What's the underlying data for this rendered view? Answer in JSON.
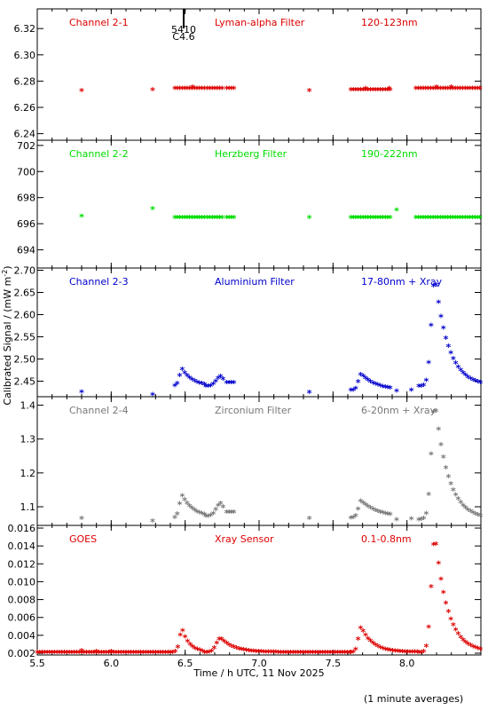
{
  "footer": "(1 minute averages)",
  "chart_data": {
    "type": "scatter",
    "xlabel": "Time / h UTC, 11 Nov 2025",
    "ylabel": "Calibrated Signal / (mW m",
    "ylabel_sup": "-2",
    "ylabel_close": ")",
    "xlim": [
      5.5,
      8.5
    ],
    "x_ticks": [
      5.5,
      6.0,
      6.5,
      7.0,
      7.5,
      8.0
    ],
    "x_tick_labels": [
      "5.5",
      "6.0",
      "6.5",
      "7.0",
      "7.5",
      "8.0"
    ],
    "flare_marker": {
      "x": 6.49,
      "label_top": "5410",
      "label_bottom": "C4.6"
    },
    "panels": [
      {
        "labels": [
          "Channel 2-1",
          "Lyman-alpha Filter",
          "120-123nm"
        ],
        "color": "#dd0000",
        "ylim": [
          6.235,
          6.335
        ],
        "yticks": [
          6.24,
          6.26,
          6.28,
          6.3,
          6.32
        ],
        "ytick_labels": [
          "6.24",
          "6.26",
          "6.28",
          "6.30",
          "6.32"
        ],
        "segments": [
          {
            "x0": 6.43,
            "x1": 6.63,
            "fn": "flat",
            "v": 6.274
          },
          {
            "x0": 6.65,
            "x1": 6.76,
            "fn": "flat",
            "v": 6.274
          },
          {
            "x0": 6.78,
            "x1": 6.83,
            "fn": "flat",
            "v": 6.274
          },
          {
            "x0": 7.62,
            "x1": 7.9,
            "fn": "flat",
            "v": 6.273
          },
          {
            "x0": 8.06,
            "x1": 8.5,
            "fn": "flat",
            "v": 6.274
          }
        ],
        "points": [
          [
            5.8,
            6.272
          ],
          [
            6.28,
            6.273
          ],
          [
            6.55,
            6.275
          ],
          [
            7.34,
            6.272
          ],
          [
            7.72,
            6.274
          ],
          [
            7.88,
            6.274
          ],
          [
            8.2,
            6.275
          ],
          [
            8.3,
            6.275
          ]
        ]
      },
      {
        "labels": [
          "Channel 2-2",
          "Herzberg Filter",
          "190-222nm"
        ],
        "color": "#00dd00",
        "ylim": [
          692.6,
          702.4
        ],
        "yticks": [
          694,
          696,
          698,
          700,
          702
        ],
        "ytick_labels": [
          "694",
          "696",
          "698",
          "700",
          "702"
        ],
        "segments": [
          {
            "x0": 6.43,
            "x1": 6.63,
            "fn": "flat",
            "v": 696.4
          },
          {
            "x0": 6.65,
            "x1": 6.76,
            "fn": "flat",
            "v": 696.4
          },
          {
            "x0": 6.78,
            "x1": 6.83,
            "fn": "flat",
            "v": 696.4
          },
          {
            "x0": 7.62,
            "x1": 7.9,
            "fn": "flat",
            "v": 696.4
          },
          {
            "x0": 8.06,
            "x1": 8.5,
            "fn": "flat",
            "v": 696.4
          }
        ],
        "points": [
          [
            5.8,
            696.5
          ],
          [
            6.28,
            697.1
          ],
          [
            7.34,
            696.4
          ],
          [
            7.93,
            697.0
          ]
        ]
      },
      {
        "labels": [
          "Channel 2-3",
          "Aluminium Filter",
          "17-80nm + Xray"
        ],
        "color": "#0000cc",
        "ylim": [
          2.415,
          2.705
        ],
        "yticks": [
          2.45,
          2.5,
          2.55,
          2.6,
          2.65,
          2.7
        ],
        "ytick_labels": [
          "2.45",
          "2.50",
          "2.55",
          "2.60",
          "2.65",
          "2.70"
        ],
        "segments": [
          {
            "x0": 6.43,
            "x1": 6.63,
            "fn": "bump",
            "base": 2.437,
            "amp": 0.038,
            "peak": 6.48,
            "rise": 0.025,
            "decay": 0.07
          },
          {
            "x0": 6.64,
            "x1": 6.77,
            "fn": "bump",
            "base": 2.437,
            "amp": 0.022,
            "peak": 6.74,
            "rise": 0.04,
            "decay": 0.05
          },
          {
            "x0": 6.78,
            "x1": 6.83,
            "fn": "flat",
            "v": 2.445
          },
          {
            "x0": 7.62,
            "x1": 7.9,
            "fn": "bump",
            "base": 2.428,
            "amp": 0.036,
            "peak": 7.69,
            "rise": 0.025,
            "decay": 0.1
          },
          {
            "x0": 8.08,
            "x1": 8.5,
            "fn": "bump",
            "base": 2.437,
            "amp": 0.245,
            "peak": 8.19,
            "rise": 0.035,
            "decay": 0.09
          }
        ],
        "points": [
          [
            5.8,
            2.424
          ],
          [
            6.28,
            2.418
          ],
          [
            7.34,
            2.423
          ],
          [
            7.93,
            2.426
          ],
          [
            8.03,
            2.428
          ]
        ]
      },
      {
        "labels": [
          "Channel 2-4",
          "Zirconium Filter",
          "6-20nm + Xray"
        ],
        "color": "#777777",
        "ylim": [
          1.045,
          1.425
        ],
        "yticks": [
          1.1,
          1.2,
          1.3,
          1.4
        ],
        "ytick_labels": [
          "1.1",
          "1.2",
          "1.3",
          "1.4"
        ],
        "segments": [
          {
            "x0": 6.43,
            "x1": 6.63,
            "fn": "bump",
            "base": 1.065,
            "amp": 0.065,
            "peak": 6.48,
            "rise": 0.025,
            "decay": 0.08
          },
          {
            "x0": 6.64,
            "x1": 6.77,
            "fn": "bump",
            "base": 1.07,
            "amp": 0.038,
            "peak": 6.74,
            "rise": 0.04,
            "decay": 0.05
          },
          {
            "x0": 6.78,
            "x1": 6.83,
            "fn": "flat",
            "v": 1.082
          },
          {
            "x0": 7.62,
            "x1": 7.9,
            "fn": "bump",
            "base": 1.065,
            "amp": 0.05,
            "peak": 7.69,
            "rise": 0.025,
            "decay": 0.12
          },
          {
            "x0": 8.08,
            "x1": 8.5,
            "fn": "bump",
            "base": 1.06,
            "amp": 0.345,
            "peak": 8.19,
            "rise": 0.035,
            "decay": 0.09
          }
        ],
        "points": [
          [
            5.8,
            1.064
          ],
          [
            6.28,
            1.055
          ],
          [
            7.34,
            1.064
          ],
          [
            7.93,
            1.06
          ],
          [
            8.03,
            1.062
          ]
        ]
      },
      {
        "labels": [
          "GOES",
          "Xray Sensor",
          "0.1-0.8nm"
        ],
        "color": "#dd0000",
        "ylim": [
          0.0018,
          0.0163
        ],
        "yticks": [
          0.002,
          0.004,
          0.006,
          0.008,
          0.01,
          0.012,
          0.014,
          0.016
        ],
        "ytick_labels": [
          "0.002",
          "0.004",
          "0.006",
          "0.008",
          "0.010",
          "0.012",
          "0.014",
          "0.016"
        ],
        "segments": [
          {
            "x0": 5.5,
            "x1": 6.4,
            "fn": "flat",
            "v": 0.002
          },
          {
            "x0": 6.4,
            "x1": 6.63,
            "fn": "bump",
            "base": 0.002,
            "amp": 0.0026,
            "peak": 6.48,
            "rise": 0.025,
            "decay": 0.05
          },
          {
            "x0": 6.63,
            "x1": 7.62,
            "fn": "bump",
            "base": 0.002,
            "amp": 0.0016,
            "peak": 6.74,
            "rise": 0.04,
            "decay": 0.09
          },
          {
            "x0": 7.62,
            "x1": 8.08,
            "fn": "bump",
            "base": 0.002,
            "amp": 0.0028,
            "peak": 7.69,
            "rise": 0.025,
            "decay": 0.08
          },
          {
            "x0": 8.08,
            "x1": 8.5,
            "fn": "bump",
            "base": 0.002,
            "amp": 0.0131,
            "peak": 8.19,
            "rise": 0.035,
            "decay": 0.085
          }
        ],
        "points": [
          [
            5.8,
            0.0022
          ],
          [
            5.9,
            0.0021
          ],
          [
            6.0,
            0.0021
          ]
        ]
      }
    ]
  }
}
